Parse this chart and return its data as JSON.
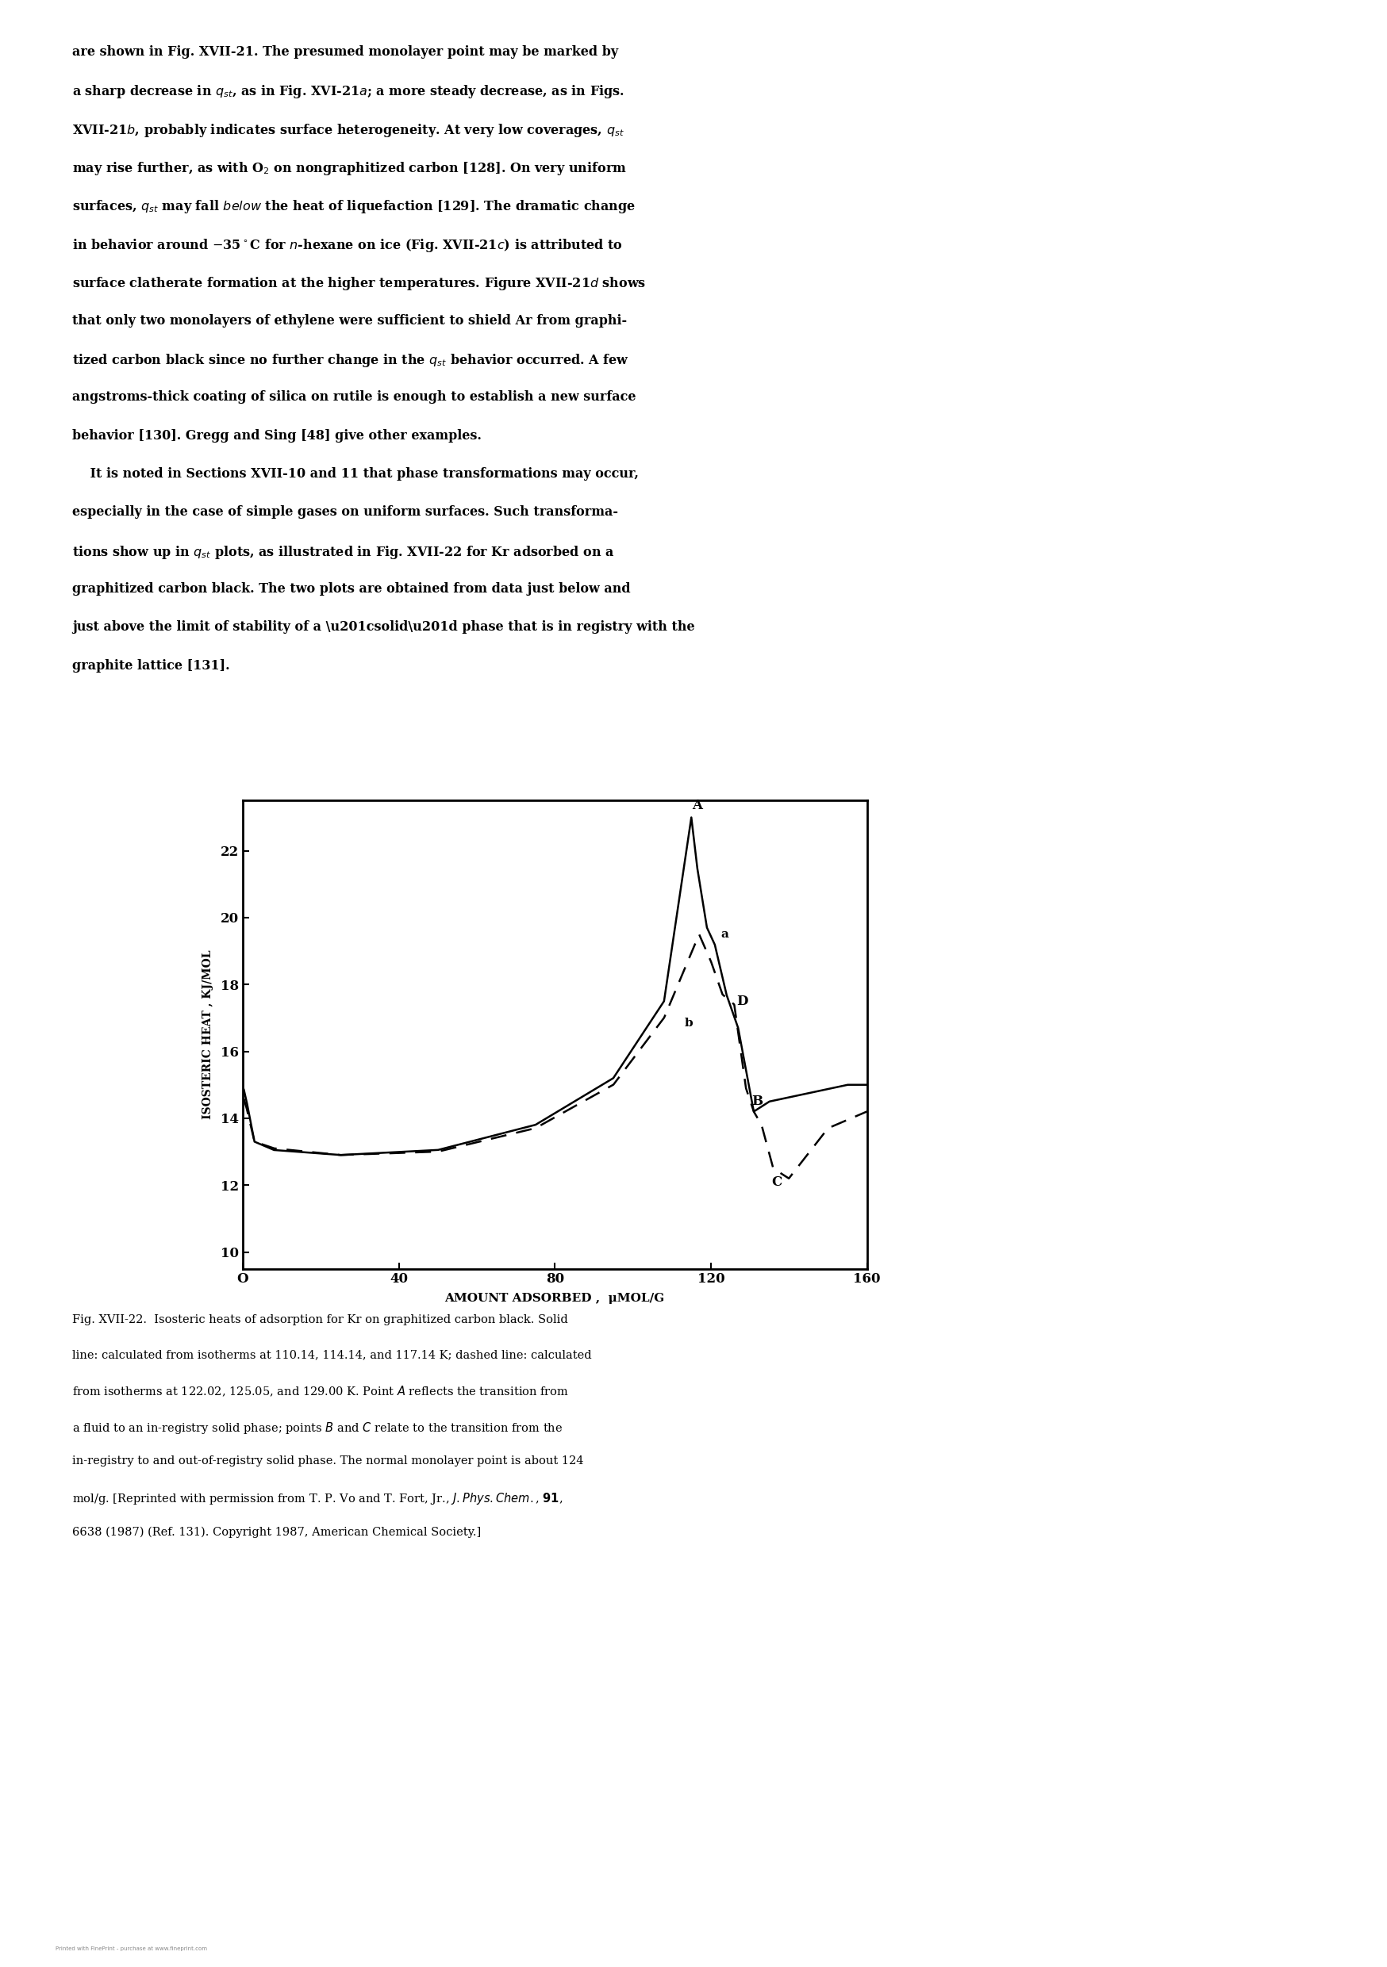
{
  "xlabel": "AMOUNT ADSORBED ,  μMOL/G",
  "ylabel": "ISOSTERIC HEAT , KJ/MOL",
  "xlim": [
    0,
    160
  ],
  "ylim": [
    9.5,
    23.5
  ],
  "xticks": [
    0,
    40,
    80,
    120,
    160
  ],
  "xtick_labels": [
    "O",
    "40",
    "80",
    "120",
    "160"
  ],
  "yticks": [
    10,
    12,
    14,
    16,
    18,
    20,
    22
  ],
  "line_color": "#000000",
  "body_text": "are shown in Fig. XVII-21. The presumed monolayer point may be marked by\na sharp decrease in $q_{st}$, as in Fig. XVI-21$a$; a more steady decrease, as in Figs.\nXVII-21$b$, probably indicates surface heterogeneity. At very low coverages, $q_{st}$\nmay rise further, as with O$_2$ on nongraphitized carbon [128]. On very uniform\nsurfaces, $q_{st}$ may fall \\textit{below} the heat of liquefaction [129]. The dramatic change\nin behavior around −35°C for $n$-hexane on ice (Fig. XVII-21$c$) is attributed to\nsurface clatherate formation at the higher temperatures. Figure XVII-21$d$ shows\nthat only two monolayers of ethylene were sufficient to shield Ar from graphi-\ntized carbon black since no further change in the $q_{st}$ behavior occurred. A few\nangstroms-thick coating of silica on rutile is enough to establish a new surface\nbehavior [130]. Gregg and Sing [48] give other examples.\n    It is noted in Sections XVII-10 and 11 that phase transformations may occur,\nespecially in the case of simple gases on uniform surfaces. Such transforma-\ntions show up in $q_{st}$ plots, as illustrated in Fig. XVII-22 for Kr adsorbed on a\ngraphitized carbon black. The two plots are obtained from data just below and\njust above the limit of stability of a “solid” phase that is in registry with the\ngraphite lattice [131].",
  "caption_text": "Fig. XVII-22.  Isosteric heats of adsorption for Kr on graphitized carbon black. Solid\nline: calculated from isotherms at 110.14, 114.14, and 117.14 K; dashed line: calculated\nfrom isotherms at 122.02, 125.05, and 129.00 K. Point $A$ reflects the transition from\na fluid to an in-registry solid phase; points $B$ and $C$ relate to the transition from the\nin-registry to and out-of-registry solid phase. The normal monolayer point is about 124\nmol/g. [Reprinted with permission from T. P. Vo and T. Fort, Jr., $J. Phys. Chem.$, \\textbf{91},\n6638 (1987) (Ref. 131). Copyright 1987, American Chemical Society.]"
}
